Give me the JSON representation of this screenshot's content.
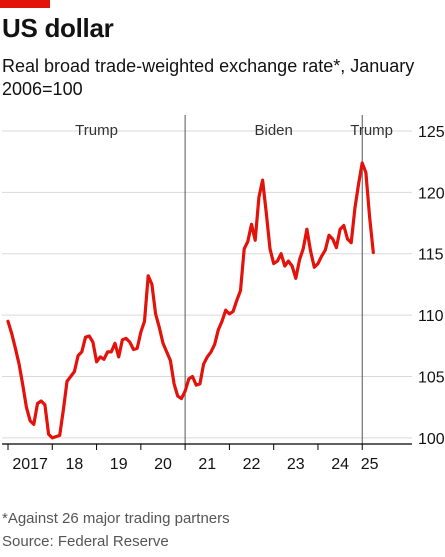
{
  "title": "US dollar",
  "subtitle": "Real broad trade-weighted exchange rate*, January 2006=100",
  "footnote": "*Against 26 major trading partners",
  "source": "Source: Federal Reserve",
  "colors": {
    "accent": "#e3120b",
    "line": "#e3120b",
    "grid": "#d9d9d9",
    "axis": "#000000"
  },
  "chart_data": {
    "type": "line",
    "title": "US dollar",
    "subtitle": "Real broad trade-weighted exchange rate*, January 2006=100",
    "xlabel": "",
    "ylabel": "",
    "x_tick_labels": [
      "2017",
      "18",
      "19",
      "20",
      "21",
      "22",
      "23",
      "24",
      "25"
    ],
    "y_ticks": [
      100,
      105,
      110,
      115,
      120,
      125
    ],
    "ylim": [
      99.5,
      125
    ],
    "xlim": [
      "2017-01",
      "2025-05"
    ],
    "grid": true,
    "periods": [
      {
        "label": "Trump",
        "start": "2017-01",
        "end": "2021-01"
      },
      {
        "label": "Biden",
        "start": "2021-01",
        "end": "2025-01"
      },
      {
        "label": "Trump",
        "start": "2025-01",
        "end": "2025-05"
      }
    ],
    "series": [
      {
        "x": [
          "2017-01",
          "2017-02",
          "2017-03",
          "2017-04",
          "2017-05",
          "2017-06",
          "2017-07",
          "2017-08",
          "2017-09",
          "2017-10",
          "2017-11",
          "2017-12",
          "2018-01",
          "2018-02",
          "2018-03",
          "2018-04",
          "2018-05",
          "2018-06",
          "2018-07",
          "2018-08",
          "2018-09",
          "2018-10",
          "2018-11",
          "2018-12",
          "2019-01",
          "2019-02",
          "2019-03",
          "2019-04",
          "2019-05",
          "2019-06",
          "2019-07",
          "2019-08",
          "2019-09",
          "2019-10",
          "2019-11",
          "2019-12",
          "2020-01",
          "2020-02",
          "2020-03",
          "2020-04",
          "2020-05",
          "2020-06",
          "2020-07",
          "2020-08",
          "2020-09",
          "2020-10",
          "2020-11",
          "2020-12",
          "2021-01",
          "2021-02",
          "2021-03",
          "2021-04",
          "2021-05",
          "2021-06",
          "2021-07",
          "2021-08",
          "2021-09",
          "2021-10",
          "2021-11",
          "2021-12",
          "2022-01",
          "2022-02",
          "2022-03",
          "2022-04",
          "2022-05",
          "2022-06",
          "2022-07",
          "2022-08",
          "2022-09",
          "2022-10",
          "2022-11",
          "2022-12",
          "2023-01",
          "2023-02",
          "2023-03",
          "2023-04",
          "2023-05",
          "2023-06",
          "2023-07",
          "2023-08",
          "2023-09",
          "2023-10",
          "2023-11",
          "2023-12",
          "2024-01",
          "2024-02",
          "2024-03",
          "2024-04",
          "2024-05",
          "2024-06",
          "2024-07",
          "2024-08",
          "2024-09",
          "2024-10",
          "2024-11",
          "2024-12",
          "2025-01",
          "2025-02",
          "2025-03",
          "2025-04"
        ],
        "values": [
          109.5,
          108.5,
          107.3,
          106.0,
          104.3,
          102.5,
          101.4,
          101.1,
          102.8,
          103.0,
          102.7,
          100.3,
          100.0,
          100.1,
          100.2,
          102.3,
          104.6,
          105.0,
          105.4,
          106.7,
          107.0,
          108.2,
          108.3,
          107.8,
          106.2,
          106.6,
          106.4,
          107.0,
          107.0,
          107.7,
          106.6,
          108.0,
          108.1,
          107.8,
          107.2,
          107.3,
          108.6,
          109.5,
          113.2,
          112.5,
          110.1,
          109.0,
          107.7,
          107.0,
          106.3,
          104.4,
          103.4,
          103.2,
          103.8,
          104.8,
          105.0,
          104.3,
          104.4,
          106.0,
          106.6,
          107.0,
          107.6,
          108.8,
          109.5,
          110.4,
          110.1,
          110.3,
          111.2,
          112.0,
          115.4,
          116.0,
          117.4,
          116.1,
          119.6,
          121.0,
          118.3,
          115.4,
          114.2,
          114.4,
          115.0,
          114.0,
          114.4,
          114.0,
          113.0,
          114.5,
          115.4,
          117.0,
          115.2,
          113.9,
          114.2,
          114.8,
          115.3,
          116.5,
          116.2,
          115.5,
          117.0,
          117.3,
          116.2,
          115.9,
          118.7,
          120.7,
          122.4,
          121.6,
          118.0,
          115.1
        ]
      }
    ]
  }
}
